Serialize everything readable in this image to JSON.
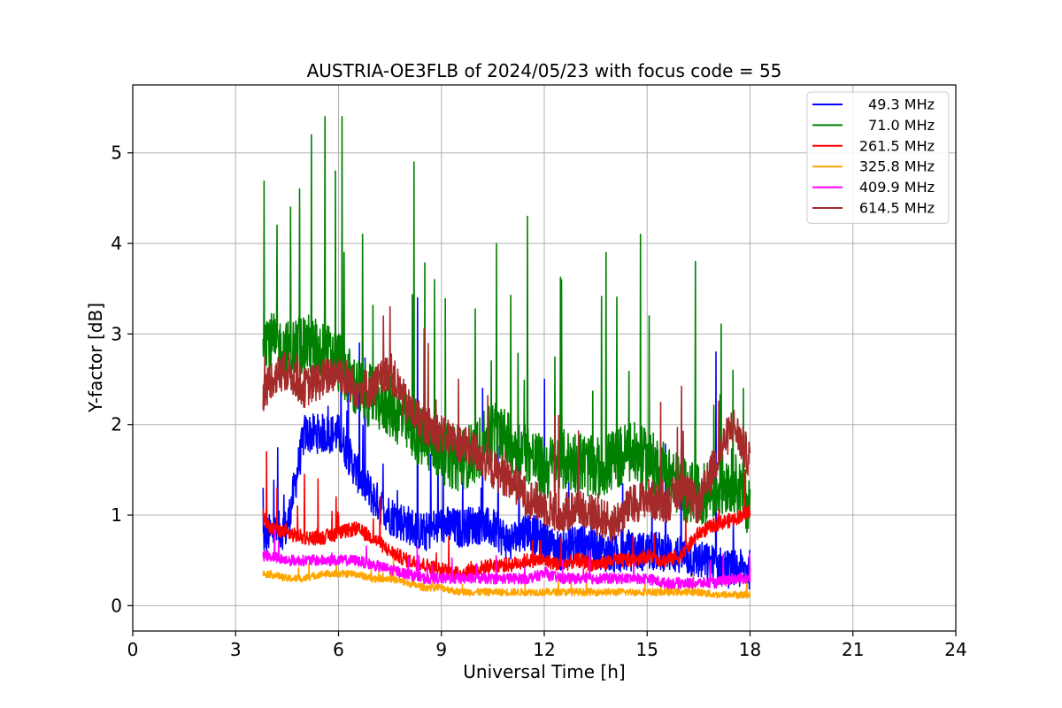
{
  "chart_data": {
    "type": "line",
    "title": "AUSTRIA-OE3FLB of 2024/05/23 with focus code = 55",
    "xlabel": "Universal Time [h]",
    "ylabel": "Y-factor [dB]",
    "xlim": [
      0,
      24
    ],
    "ylim": [
      -0.28,
      5.75
    ],
    "xticks": [
      0,
      3,
      6,
      9,
      12,
      15,
      18,
      21,
      24
    ],
    "yticks": [
      0,
      1,
      2,
      3,
      4,
      5
    ],
    "grid": true,
    "legend_position": "top-right",
    "series": [
      {
        "name": "49.3 MHz",
        "color": "#0000ff",
        "x": [
          3.8,
          4.0,
          4.5,
          5.0,
          5.5,
          6.0,
          6.5,
          7.0,
          7.5,
          8.0,
          8.5,
          9.0,
          9.5,
          10.0,
          10.5,
          11.0,
          11.5,
          12.0,
          12.5,
          13.0,
          13.5,
          14.0,
          14.5,
          15.0,
          15.5,
          16.0,
          16.5,
          17.0,
          17.5,
          18.0
        ],
        "y": [
          0.75,
          0.8,
          0.85,
          1.9,
          1.9,
          1.9,
          1.5,
          1.2,
          1.0,
          0.9,
          0.8,
          0.9,
          0.85,
          0.9,
          0.85,
          0.7,
          0.85,
          0.7,
          0.6,
          0.7,
          0.65,
          0.55,
          0.6,
          0.6,
          0.6,
          0.55,
          0.5,
          0.45,
          0.4,
          0.4
        ],
        "noise": 0.22,
        "spikes": [
          [
            3.8,
            1.3
          ],
          [
            6.6,
            2.9
          ],
          [
            8.3,
            3.4
          ],
          [
            10.2,
            2.4
          ],
          [
            12.0,
            2.5
          ],
          [
            17.0,
            2.8
          ]
        ]
      },
      {
        "name": "71.0 MHz",
        "color": "#008000",
        "x": [
          3.8,
          4.0,
          4.5,
          5.0,
          5.5,
          6.0,
          6.5,
          7.0,
          7.5,
          8.0,
          8.5,
          9.0,
          9.5,
          10.0,
          10.5,
          11.0,
          11.5,
          12.0,
          12.5,
          13.0,
          13.5,
          14.0,
          14.5,
          15.0,
          15.5,
          16.0,
          16.5,
          17.0,
          17.5,
          18.0
        ],
        "y": [
          3.1,
          2.9,
          2.8,
          2.9,
          2.8,
          2.7,
          2.4,
          2.3,
          2.2,
          2.0,
          1.8,
          1.7,
          1.6,
          1.7,
          1.9,
          1.8,
          1.7,
          1.5,
          1.6,
          1.6,
          1.5,
          1.6,
          1.7,
          1.6,
          1.5,
          1.3,
          1.2,
          1.3,
          1.4,
          1.1
        ],
        "noise": 0.35,
        "spikes": [
          [
            4.2,
            4.2
          ],
          [
            4.6,
            4.4
          ],
          [
            5.2,
            5.2
          ],
          [
            5.6,
            5.4
          ],
          [
            5.9,
            4.8
          ],
          [
            6.1,
            5.4
          ],
          [
            6.7,
            4.1
          ],
          [
            8.2,
            4.9
          ],
          [
            8.8,
            3.6
          ],
          [
            10.6,
            4.0
          ],
          [
            11.5,
            4.3
          ],
          [
            12.5,
            3.6
          ],
          [
            13.8,
            3.9
          ],
          [
            14.8,
            4.1
          ],
          [
            16.4,
            3.8
          ],
          [
            17.5,
            2.6
          ],
          [
            17.8,
            2.4
          ]
        ]
      },
      {
        "name": "261.5 MHz",
        "color": "#ff0000",
        "x": [
          3.8,
          4.0,
          4.5,
          5.0,
          5.5,
          6.0,
          6.5,
          7.0,
          7.5,
          8.0,
          8.5,
          9.0,
          9.5,
          10.0,
          10.5,
          11.0,
          11.5,
          12.0,
          12.5,
          13.0,
          13.5,
          14.0,
          14.5,
          15.0,
          15.5,
          16.0,
          16.5,
          17.0,
          17.5,
          18.0
        ],
        "y": [
          1.0,
          0.85,
          0.8,
          0.75,
          0.75,
          0.8,
          0.85,
          0.75,
          0.6,
          0.5,
          0.45,
          0.4,
          0.35,
          0.4,
          0.45,
          0.45,
          0.5,
          0.5,
          0.45,
          0.5,
          0.45,
          0.5,
          0.5,
          0.55,
          0.5,
          0.55,
          0.8,
          0.9,
          0.95,
          1.05
        ],
        "noise": 0.08,
        "spikes": [
          [
            3.9,
            1.7
          ],
          [
            4.2,
            1.3
          ],
          [
            4.8,
            1.1
          ],
          [
            5.0,
            1.45
          ],
          [
            5.4,
            1.4
          ],
          [
            6.0,
            1.0
          ],
          [
            7.2,
            1.2
          ]
        ]
      },
      {
        "name": "325.8 MHz",
        "color": "#ffa500",
        "x": [
          3.8,
          4.0,
          4.5,
          5.0,
          5.5,
          6.0,
          6.5,
          7.0,
          7.5,
          8.0,
          8.5,
          9.0,
          9.5,
          10.0,
          10.5,
          11.0,
          11.5,
          12.0,
          12.5,
          13.0,
          13.5,
          14.0,
          14.5,
          15.0,
          15.5,
          16.0,
          16.5,
          17.0,
          17.5,
          18.0
        ],
        "y": [
          0.35,
          0.35,
          0.3,
          0.3,
          0.35,
          0.35,
          0.35,
          0.3,
          0.3,
          0.25,
          0.2,
          0.2,
          0.15,
          0.15,
          0.15,
          0.15,
          0.15,
          0.15,
          0.15,
          0.15,
          0.15,
          0.15,
          0.15,
          0.15,
          0.15,
          0.15,
          0.15,
          0.12,
          0.12,
          0.12
        ],
        "noise": 0.04,
        "spikes": []
      },
      {
        "name": "409.9 MHz",
        "color": "#ff00ff",
        "x": [
          3.8,
          4.0,
          4.5,
          5.0,
          5.5,
          6.0,
          6.5,
          7.0,
          7.5,
          8.0,
          8.5,
          9.0,
          9.5,
          10.0,
          10.5,
          11.0,
          11.5,
          12.0,
          12.5,
          13.0,
          13.5,
          14.0,
          14.5,
          15.0,
          15.5,
          16.0,
          16.5,
          17.0,
          17.5,
          18.0
        ],
        "y": [
          0.55,
          0.55,
          0.5,
          0.5,
          0.5,
          0.5,
          0.5,
          0.45,
          0.4,
          0.35,
          0.3,
          0.3,
          0.3,
          0.3,
          0.3,
          0.3,
          0.3,
          0.35,
          0.3,
          0.3,
          0.3,
          0.3,
          0.3,
          0.3,
          0.25,
          0.25,
          0.25,
          0.25,
          0.3,
          0.3
        ],
        "noise": 0.06,
        "spikes": []
      },
      {
        "name": "614.5 MHz",
        "color": "#a52a2a",
        "x": [
          3.8,
          4.0,
          4.5,
          5.0,
          5.5,
          6.0,
          6.5,
          7.0,
          7.5,
          8.0,
          8.5,
          9.0,
          9.5,
          10.0,
          10.5,
          11.0,
          11.5,
          12.0,
          12.5,
          13.0,
          13.5,
          14.0,
          14.5,
          15.0,
          15.5,
          16.0,
          16.5,
          17.0,
          17.5,
          18.0
        ],
        "y": [
          2.3,
          2.5,
          2.6,
          2.4,
          2.5,
          2.6,
          2.4,
          2.4,
          2.6,
          2.2,
          2.0,
          1.9,
          1.8,
          1.7,
          1.5,
          1.4,
          1.2,
          1.1,
          1.0,
          1.1,
          1.0,
          0.9,
          1.1,
          1.2,
          1.1,
          1.3,
          1.1,
          1.6,
          2.0,
          1.6
        ],
        "noise": 0.22,
        "spikes": [
          [
            7.5,
            3.3
          ],
          [
            9.5,
            2.5
          ],
          [
            12.3,
            2.1
          ]
        ]
      }
    ]
  }
}
